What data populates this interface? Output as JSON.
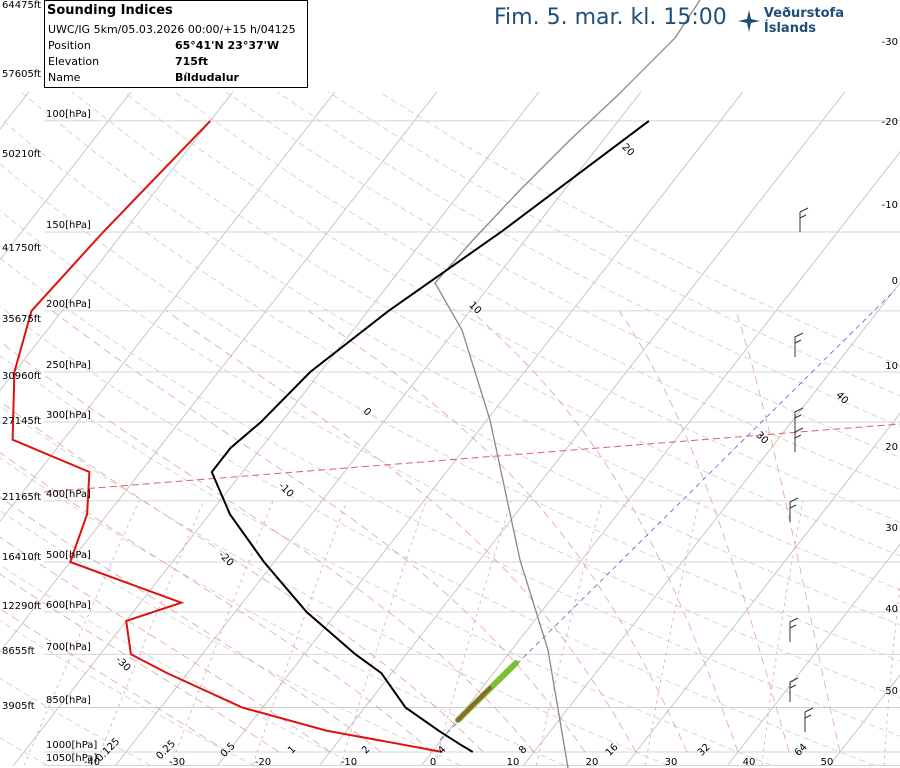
{
  "header": {
    "title": "Fim. 5. mar. kl. 15:00",
    "brand_name": "Veðurstofa Íslands",
    "brand_color": "#1f4e79"
  },
  "info": {
    "title": "Sounding Indices",
    "run": "UWC/IG 5km/05.03.2026 00:00/+15 h/04125",
    "rows": [
      {
        "label": "Position",
        "value": "65°41'N 23°37'W"
      },
      {
        "label": "Elevation",
        "value": "715ft"
      },
      {
        "label": "Name",
        "value": "Bíldudalur"
      }
    ]
  },
  "chart_data": {
    "type": "line",
    "diagram": "skew-T log-p",
    "pressure_levels": [
      {
        "p": 1050,
        "label": "1050[hPa]"
      },
      {
        "p": 1000,
        "label": "1000[hPa]"
      },
      {
        "p": 850,
        "label": "850[hPa]"
      },
      {
        "p": 700,
        "label": "700[hPa]"
      },
      {
        "p": 600,
        "label": "600[hPa]"
      },
      {
        "p": 500,
        "label": "500[hPa]"
      },
      {
        "p": 400,
        "label": "400[hPa]"
      },
      {
        "p": 300,
        "label": "300[hPa]"
      },
      {
        "p": 250,
        "label": "250[hPa]"
      },
      {
        "p": 200,
        "label": "200[hPa]"
      },
      {
        "p": 150,
        "label": "150[hPa]"
      },
      {
        "p": 100,
        "label": "100[hPa]"
      }
    ],
    "altitude_labels": [
      "64475ft",
      "57605ft",
      "50210ft",
      "41750ft",
      "35675ft",
      "30960ft",
      "27145ft",
      "21165ft",
      "16410ft",
      "12290ft",
      "8655ft",
      "3905ft"
    ],
    "right_axis_ticks": [
      "-30",
      "-20",
      "-10",
      "0",
      "10",
      "20",
      "30",
      "40",
      "50"
    ],
    "bottom_ticks": [
      "-40",
      "-30",
      "-20",
      "-10",
      "0",
      "10",
      "20",
      "30",
      "40",
      "50"
    ],
    "mixing_ratio_ticks": [
      "0.125",
      "0.25",
      "0.5",
      "1",
      "2",
      "4",
      "8",
      "16",
      "32",
      "64"
    ],
    "isotherm_inline_labels": [
      "-30",
      "-20",
      "-10",
      "0",
      "10",
      "20",
      "30",
      "40"
    ],
    "temperature": [
      {
        "p": 1000,
        "t": 4
      },
      {
        "p": 970,
        "t": 2
      },
      {
        "p": 925,
        "t": -1
      },
      {
        "p": 850,
        "t": -6
      },
      {
        "p": 750,
        "t": -11
      },
      {
        "p": 700,
        "t": -15
      },
      {
        "p": 600,
        "t": -23
      },
      {
        "p": 500,
        "t": -31
      },
      {
        "p": 420,
        "t": -38
      },
      {
        "p": 360,
        "t": -43
      },
      {
        "p": 330,
        "t": -43
      },
      {
        "p": 300,
        "t": -42
      },
      {
        "p": 250,
        "t": -41
      },
      {
        "p": 200,
        "t": -38
      },
      {
        "p": 150,
        "t": -33
      },
      {
        "p": 100,
        "t": -27
      }
    ],
    "dewpoint": [
      {
        "p": 1000,
        "t": 1
      },
      {
        "p": 970,
        "t": -4
      },
      {
        "p": 925,
        "t": -12
      },
      {
        "p": 850,
        "t": -22
      },
      {
        "p": 750,
        "t": -32
      },
      {
        "p": 700,
        "t": -37
      },
      {
        "p": 620,
        "t": -40
      },
      {
        "p": 580,
        "t": -36
      },
      {
        "p": 500,
        "t": -50
      },
      {
        "p": 420,
        "t": -52
      },
      {
        "p": 360,
        "t": -55
      },
      {
        "p": 320,
        "t": -65
      },
      {
        "p": 250,
        "t": -70
      },
      {
        "p": 200,
        "t": -73
      },
      {
        "p": 150,
        "t": -72
      },
      {
        "p": 100,
        "t": -70
      }
    ],
    "colors": {
      "temperature": "#000000",
      "dewpoint": "#dd1111",
      "isotherm": "#bbbbbb",
      "isobar": "#c8c8c8",
      "dry_adiabat": "#cccccc",
      "moist_adiabat": "#e8a0a0",
      "mixing_ratio": "#dca0c8",
      "parcel": "#888888",
      "freezing_level": "#e06060",
      "wind_barb": "#333333"
    }
  }
}
